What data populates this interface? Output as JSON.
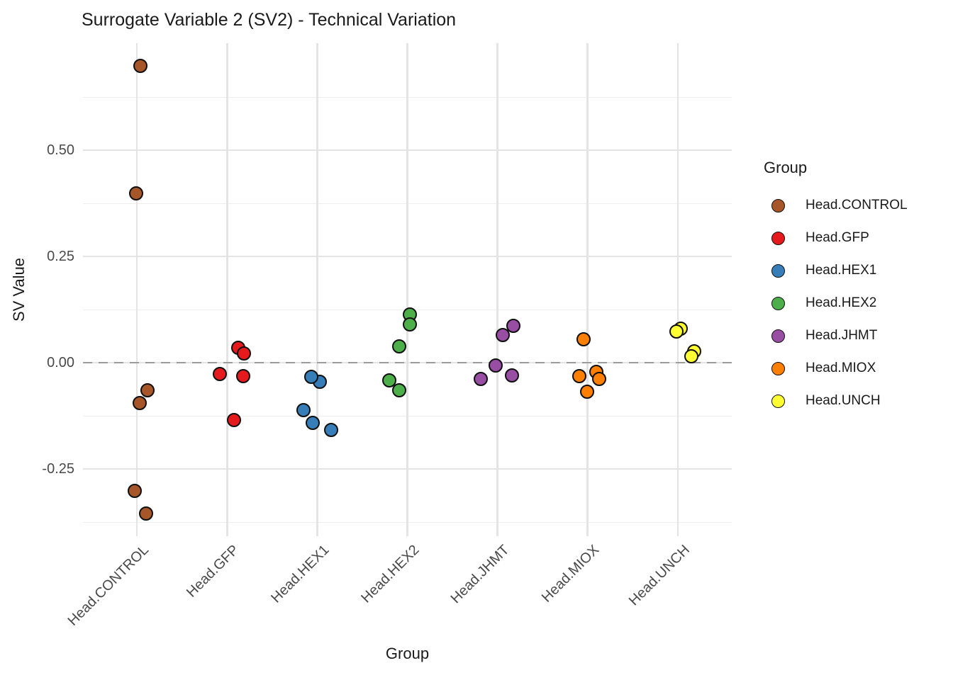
{
  "chart_data": {
    "type": "scatter",
    "title": "Surrogate Variable 2 (SV2) - Technical Variation",
    "xlabel": "Group",
    "ylabel": "SV Value",
    "categories": [
      "Head.CONTROL",
      "Head.GFP",
      "Head.HEX1",
      "Head.HEX2",
      "Head.JHMT",
      "Head.MIOX",
      "Head.UNCH"
    ],
    "xlim": [
      0.4,
      7.6
    ],
    "ylim": [
      -0.408,
      0.752
    ],
    "y_ticks": [
      {
        "value": 0.5,
        "label": "0.50"
      },
      {
        "value": 0.25,
        "label": "0.25"
      },
      {
        "value": 0.0,
        "label": "0.00"
      },
      {
        "value": -0.25,
        "label": "-0.25"
      }
    ],
    "y_minor_gridlines": [
      0.625,
      0.375,
      0.125,
      -0.125,
      -0.375
    ],
    "grid": true,
    "reference_line": {
      "y": 0,
      "style": "dashed",
      "color": "#9c9c9c"
    },
    "legend": {
      "title": "Group",
      "position": "right",
      "entries": [
        {
          "label": "Head.CONTROL",
          "color": "#A65628"
        },
        {
          "label": "Head.GFP",
          "color": "#E41A1C"
        },
        {
          "label": "Head.HEX1",
          "color": "#377EB8"
        },
        {
          "label": "Head.HEX2",
          "color": "#4DAF4A"
        },
        {
          "label": "Head.JHMT",
          "color": "#984EA3"
        },
        {
          "label": "Head.MIOX",
          "color": "#FF7F00"
        },
        {
          "label": "Head.UNCH",
          "color": "#FFFF33"
        }
      ]
    },
    "series": [
      {
        "name": "Head.CONTROL",
        "color": "#A65628",
        "points": [
          {
            "y": 0.698,
            "x_jitter": 0.039
          },
          {
            "y": 0.398,
            "x_jitter": -0.008
          },
          {
            "y": -0.095,
            "x_jitter": 0.031
          },
          {
            "y": -0.065,
            "x_jitter": 0.118
          },
          {
            "y": -0.302,
            "x_jitter": -0.024
          },
          {
            "y": -0.355,
            "x_jitter": 0.102
          }
        ]
      },
      {
        "name": "Head.GFP",
        "color": "#E41A1C",
        "points": [
          {
            "y": 0.035,
            "x_jitter": 0.126
          },
          {
            "y": 0.022,
            "x_jitter": 0.189
          },
          {
            "y": -0.027,
            "x_jitter": -0.079
          },
          {
            "y": -0.032,
            "x_jitter": 0.181
          },
          {
            "y": -0.135,
            "x_jitter": 0.079
          }
        ]
      },
      {
        "name": "Head.HEX1",
        "color": "#377EB8",
        "points": [
          {
            "y": -0.045,
            "x_jitter": 0.031
          },
          {
            "y": -0.033,
            "x_jitter": -0.063
          },
          {
            "y": -0.112,
            "x_jitter": -0.149
          },
          {
            "y": -0.142,
            "x_jitter": -0.047
          },
          {
            "y": -0.158,
            "x_jitter": 0.157
          }
        ]
      },
      {
        "name": "Head.HEX2",
        "color": "#4DAF4A",
        "points": [
          {
            "y": 0.113,
            "x_jitter": 0.024
          },
          {
            "y": 0.09,
            "x_jitter": 0.031
          },
          {
            "y": 0.038,
            "x_jitter": -0.094
          },
          {
            "y": -0.042,
            "x_jitter": -0.197
          },
          {
            "y": -0.065,
            "x_jitter": -0.094
          }
        ]
      },
      {
        "name": "Head.JHMT",
        "color": "#984EA3",
        "points": [
          {
            "y": 0.065,
            "x_jitter": 0.055
          },
          {
            "y": 0.087,
            "x_jitter": 0.173
          },
          {
            "y": -0.007,
            "x_jitter": -0.024
          },
          {
            "y": -0.03,
            "x_jitter": 0.157
          },
          {
            "y": -0.038,
            "x_jitter": -0.189
          }
        ]
      },
      {
        "name": "Head.MIOX",
        "color": "#FF7F00",
        "points": [
          {
            "y": 0.055,
            "x_jitter": -0.047
          },
          {
            "y": -0.022,
            "x_jitter": 0.094
          },
          {
            "y": -0.032,
            "x_jitter": -0.094
          },
          {
            "y": -0.038,
            "x_jitter": 0.126
          },
          {
            "y": -0.068,
            "x_jitter": -0.008
          }
        ]
      },
      {
        "name": "Head.UNCH",
        "color": "#FFFF33",
        "points": [
          {
            "y": 0.08,
            "x_jitter": 0.036
          },
          {
            "y": 0.073,
            "x_jitter": -0.011
          },
          {
            "y": 0.027,
            "x_jitter": 0.181
          },
          {
            "y": 0.015,
            "x_jitter": 0.149
          }
        ]
      }
    ]
  }
}
